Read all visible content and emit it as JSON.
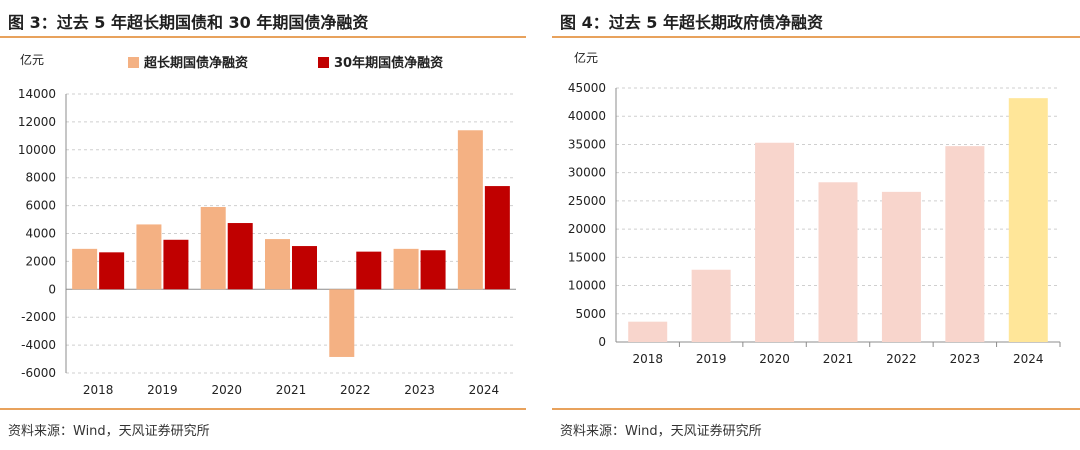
{
  "source_text": "资料来源：Wind，天风证券研究所",
  "chart_data": [
    {
      "type": "bar",
      "title": "图 3：过去 5 年超长期国债和 30 年期国债净融资",
      "ylabel": "亿元",
      "ylim": [
        -6000,
        14000
      ],
      "yticks": [
        -6000,
        -4000,
        -2000,
        0,
        2000,
        4000,
        6000,
        8000,
        10000,
        12000,
        14000
      ],
      "grid": true,
      "legend_position": "top",
      "categories": [
        "2018",
        "2019",
        "2020",
        "2021",
        "2022",
        "2023",
        "2024"
      ],
      "series": [
        {
          "name": "超长期国债净融资",
          "color": "#f4b183",
          "values": [
            2900,
            4650,
            5900,
            3600,
            -4850,
            2900,
            11400
          ]
        },
        {
          "name": "30年期国债净融资",
          "color": "#c00000",
          "values": [
            2650,
            3550,
            4750,
            3100,
            2700,
            2800,
            7400
          ]
        }
      ]
    },
    {
      "type": "bar",
      "title": "图 4：过去 5 年超长期政府债净融资",
      "ylabel": "亿元",
      "ylim": [
        0,
        45000
      ],
      "yticks": [
        0,
        5000,
        10000,
        15000,
        20000,
        25000,
        30000,
        35000,
        40000,
        45000
      ],
      "grid": true,
      "categories": [
        "2018",
        "2019",
        "2020",
        "2021",
        "2022",
        "2023",
        "2024"
      ],
      "colors": [
        "#f8d5cc",
        "#f8d5cc",
        "#f8d5cc",
        "#f8d5cc",
        "#f8d5cc",
        "#f8d5cc",
        "#ffe699"
      ],
      "values": [
        3600,
        12800,
        35300,
        28300,
        26600,
        34700,
        43200
      ]
    }
  ]
}
